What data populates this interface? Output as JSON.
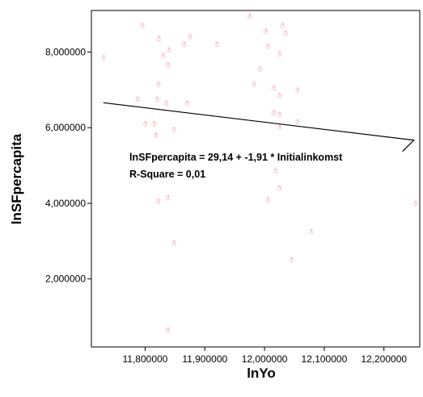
{
  "chart_data": {
    "type": "scatter",
    "xlabel": "lnYo",
    "ylabel": "lnSFpercapita",
    "xlim": [
      11.71,
      12.26
    ],
    "ylim": [
      0.2,
      9.1
    ],
    "x_ticks": [
      11.8,
      11.9,
      12.0,
      12.1,
      12.2
    ],
    "x_tick_labels": [
      "11,800000",
      "11,900000",
      "12,000000",
      "12,100000",
      "12,200000"
    ],
    "y_ticks": [
      2,
      4,
      6,
      8
    ],
    "y_tick_labels": [
      "2,000000",
      "4,000000",
      "6,000000",
      "8,000000"
    ],
    "grid": false,
    "legend": "none",
    "marker_color": "#e8606a",
    "line_color": "#000000",
    "points": [
      {
        "x": 11.73,
        "y": 7.85
      },
      {
        "x": 11.787,
        "y": 6.75
      },
      {
        "x": 11.795,
        "y": 8.7
      },
      {
        "x": 11.8,
        "y": 6.1
      },
      {
        "x": 11.815,
        "y": 6.1
      },
      {
        "x": 11.818,
        "y": 5.8
      },
      {
        "x": 11.82,
        "y": 6.75
      },
      {
        "x": 11.822,
        "y": 7.15
      },
      {
        "x": 11.822,
        "y": 4.05
      },
      {
        "x": 11.823,
        "y": 8.35
      },
      {
        "x": 11.83,
        "y": 7.9
      },
      {
        "x": 11.835,
        "y": 6.65
      },
      {
        "x": 11.838,
        "y": 7.65
      },
      {
        "x": 11.84,
        "y": 8.05
      },
      {
        "x": 11.838,
        "y": 4.15
      },
      {
        "x": 11.848,
        "y": 5.95
      },
      {
        "x": 11.848,
        "y": 2.95
      },
      {
        "x": 11.865,
        "y": 8.2
      },
      {
        "x": 11.87,
        "y": 6.65
      },
      {
        "x": 11.875,
        "y": 8.4
      },
      {
        "x": 11.92,
        "y": 8.2
      },
      {
        "x": 11.975,
        "y": 8.95
      },
      {
        "x": 11.982,
        "y": 7.15
      },
      {
        "x": 11.992,
        "y": 7.55
      },
      {
        "x": 12.002,
        "y": 8.55
      },
      {
        "x": 12.005,
        "y": 4.1
      },
      {
        "x": 12.005,
        "y": 8.15
      },
      {
        "x": 12.015,
        "y": 7.05
      },
      {
        "x": 12.015,
        "y": 6.4
      },
      {
        "x": 12.018,
        "y": 4.85
      },
      {
        "x": 12.025,
        "y": 7.95
      },
      {
        "x": 12.025,
        "y": 6.85
      },
      {
        "x": 12.025,
        "y": 6.35
      },
      {
        "x": 12.025,
        "y": 6.0
      },
      {
        "x": 12.025,
        "y": 4.4
      },
      {
        "x": 12.03,
        "y": 8.7
      },
      {
        "x": 12.035,
        "y": 8.5
      },
      {
        "x": 12.045,
        "y": 2.5
      },
      {
        "x": 12.055,
        "y": 7.0
      },
      {
        "x": 12.055,
        "y": 6.15
      },
      {
        "x": 12.078,
        "y": 3.25
      },
      {
        "x": 12.253,
        "y": 4.0
      },
      {
        "x": 11.838,
        "y": 0.65
      }
    ],
    "fit_line": {
      "x": [
        11.73,
        12.25
      ],
      "y": [
        6.66,
        5.67
      ]
    },
    "annotations": [
      "lnSFpercapita = 29,14 + -1,91 * Initialinkomst",
      "R-Square = 0,01"
    ]
  }
}
